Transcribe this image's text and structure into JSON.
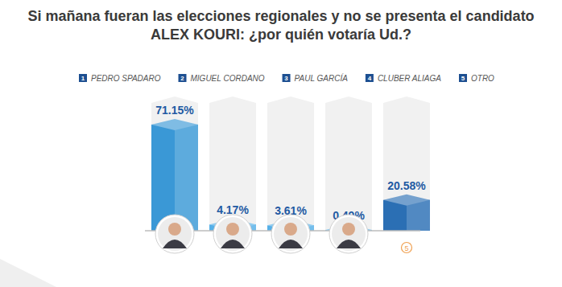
{
  "chart_data": {
    "type": "bar",
    "title": "Si mañana fueran las elecciones regionales y no se presenta el candidato\nALEX KOURI: ¿por quién votaría Ud.?",
    "categories": [
      "PEDRO SPADARO",
      "MIGUEL CORDANO",
      "PAUL GARCÍA",
      "CLUBER ALIAGA",
      "OTRO"
    ],
    "values": [
      71.15,
      4.17,
      3.61,
      0.49,
      20.58
    ],
    "value_labels": [
      "71.15%",
      "4.17%",
      "3.61%",
      "0.49%",
      "20.58%"
    ],
    "colors": [
      "#3a98d6",
      "#56b0e8",
      "#56b0e8",
      "#56b0e8",
      "#2b6fb4"
    ],
    "ylim": [
      0,
      90
    ],
    "data_labels": true,
    "tick_labels": false,
    "legend": "top"
  }
}
